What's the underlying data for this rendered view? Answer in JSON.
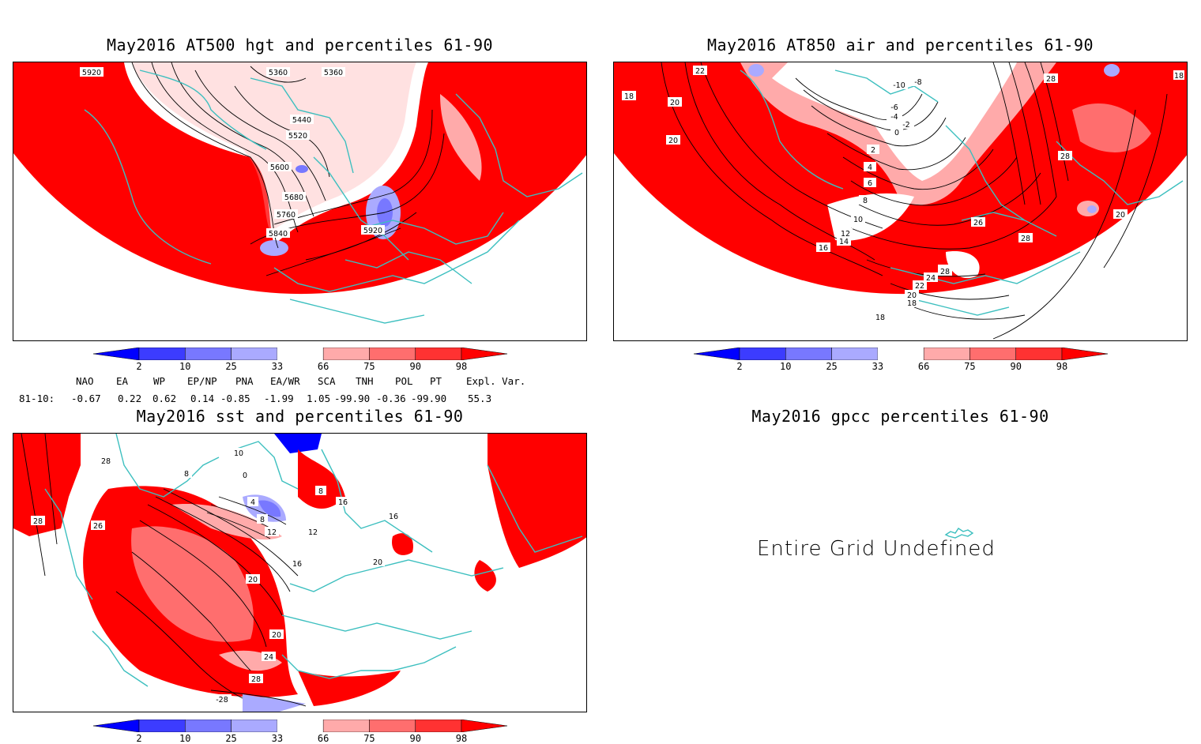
{
  "panels": [
    {
      "id": "hgt500",
      "title": "May2016 AT500 hgt and percentiles 61-90",
      "contour_labels": [
        "5920",
        "5360",
        "5360",
        "5440",
        "5520",
        "5600",
        "5680",
        "5760",
        "5840",
        "5920"
      ]
    },
    {
      "id": "air850",
      "title": "May2016 AT850 air and percentiles 61-90",
      "contour_labels": [
        "22",
        "18",
        "18",
        "20",
        "20",
        "-10",
        "-8",
        "-6",
        "-4",
        "-2",
        "0",
        "2",
        "4",
        "6",
        "8",
        "10",
        "12",
        "14",
        "16",
        "18",
        "20",
        "22",
        "24",
        "26",
        "26",
        "28",
        "28",
        "28",
        "28",
        "20",
        "18"
      ]
    },
    {
      "id": "sst",
      "title": "May2016 sst and percentiles 61-90",
      "contour_labels": [
        "28",
        "28",
        "26",
        "10",
        "8",
        "0",
        "4",
        "8",
        "12",
        "12",
        "8",
        "16",
        "16",
        "20",
        "20",
        "24",
        "28",
        "-28",
        "16",
        "20"
      ]
    },
    {
      "id": "gpcc",
      "title": "May2016 gpcc percentiles 61-90",
      "message": "Entire Grid Undefined"
    }
  ],
  "colorbar": {
    "ticks": [
      "2",
      "10",
      "25",
      "33",
      "66",
      "75",
      "90",
      "98"
    ],
    "colors": [
      "#0000ff",
      "#3c3cff",
      "#7878ff",
      "#aaaaff",
      "#ffffff",
      "#ffaaaa",
      "#ff6e6e",
      "#ff3232",
      "#ff0000"
    ]
  },
  "indices": {
    "headers": [
      "NAO",
      "EA",
      "WP",
      "EP/NP",
      "PNA",
      "EA/WR",
      "SCA",
      "TNH",
      "POL",
      "PT",
      "Expl. Var."
    ],
    "row_label": "81-10:",
    "values": [
      "-0.67",
      "0.22",
      "0.62",
      "0.14",
      "-0.85",
      "-1.99",
      "1.05",
      "-99.90",
      "-0.36",
      "-99.90",
      "55.3"
    ]
  },
  "colors": {
    "coast": "#3cbfbf",
    "contour": "#000000",
    "red": "#ff0000"
  }
}
